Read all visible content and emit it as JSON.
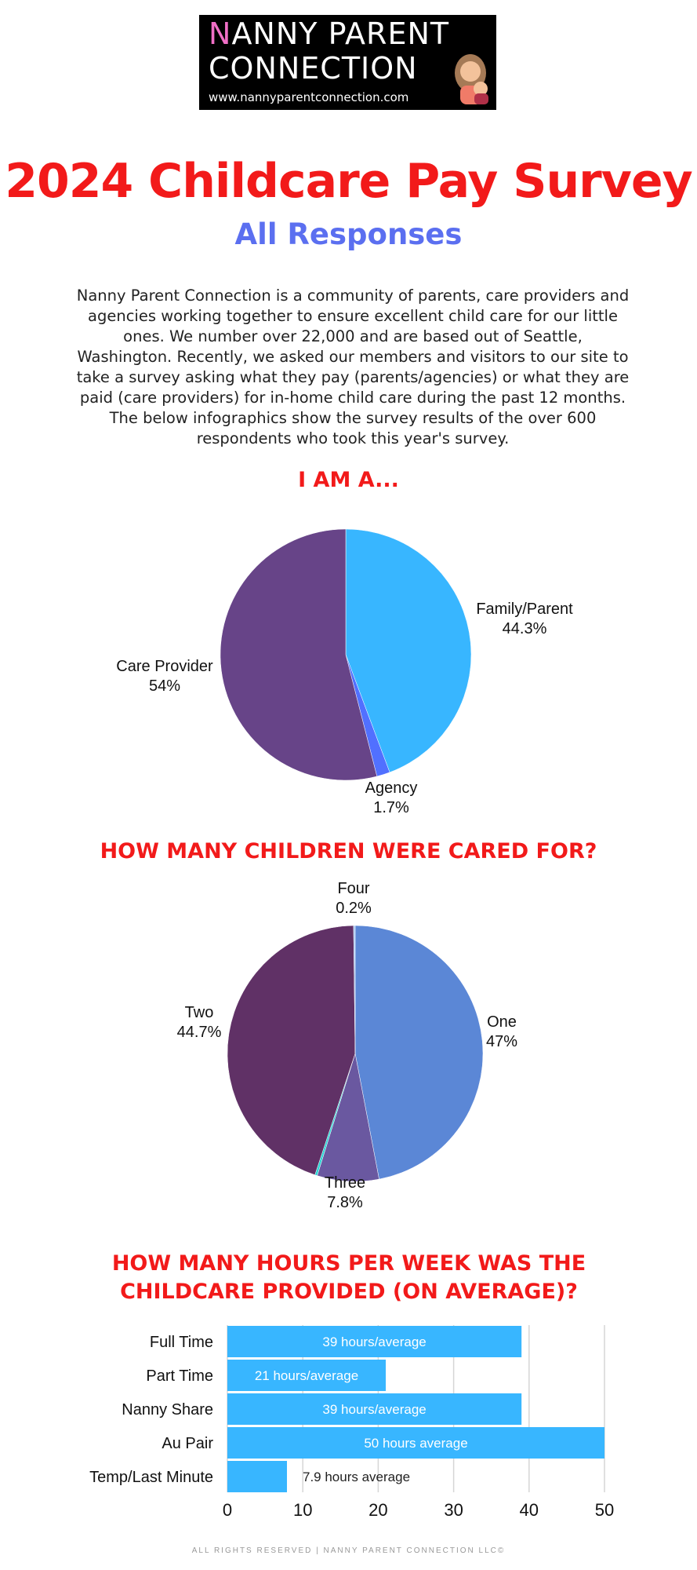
{
  "logo": {
    "line1_first": "N",
    "line1_rest": "ANNY PARENT",
    "line2": "CONNECTION",
    "url": "www.nannyparentconnection.com"
  },
  "title": "2024 Childcare Pay Survey",
  "subtitle": "All Responses",
  "intro": "Nanny Parent Connection is a community of parents, care providers and agencies working together to ensure excellent child care for our little ones. We number over 22,000 and are based out of Seattle, Washington. Recently, we asked our members and visitors to our site to take a survey asking what they pay (parents/agencies) or what they are paid (care providers) for in-home child care during the past 12 months. The below infographics show the survey results of the over 600 respondents who took this year's survey.",
  "footer": "ALL RIGHTS RESERVED | NANNY PARENT CONNECTION LLC©",
  "chart_data": [
    {
      "type": "pie",
      "title": "I AM A...",
      "slices": [
        {
          "label": "Family/Parent",
          "value": 44.3,
          "value_label": "44.3%",
          "color": "#38b6ff"
        },
        {
          "label": "Agency",
          "value": 1.7,
          "value_label": "1.7%",
          "color": "#5170ff"
        },
        {
          "label": "Care Provider",
          "value": 54,
          "value_label": "54%",
          "color": "#674488"
        }
      ]
    },
    {
      "type": "pie",
      "title": "HOW MANY CHILDREN WERE CARED FOR?",
      "slices": [
        {
          "label": "One",
          "value": 47,
          "value_label": "47%",
          "color": "#5b87d6"
        },
        {
          "label": "Three",
          "value": 7.8,
          "value_label": "7.8%",
          "color": "#6a58a0"
        },
        {
          "label": "",
          "value": 0.3,
          "value_label": "",
          "color": "#2ad4d4"
        },
        {
          "label": "Two",
          "value": 44.7,
          "value_label": "44.7%",
          "color": "#603166"
        },
        {
          "label": "Four",
          "value": 0.2,
          "value_label": "0.2%",
          "color": "#9fc4f0"
        }
      ]
    },
    {
      "type": "bar",
      "orientation": "horizontal",
      "title": "HOW MANY HOURS PER WEEK WAS THE CHILDCARE PROVIDED (ON AVERAGE)?",
      "categories": [
        "Full Time",
        "Part Time",
        "Nanny Share",
        "Au Pair",
        "Temp/Last Minute"
      ],
      "values": [
        39,
        21,
        39,
        50,
        7.9
      ],
      "data_labels": [
        "39 hours/average",
        "21 hours/average",
        "39 hours/average",
        "50 hours average",
        "7.9 hours average"
      ],
      "xlim": [
        0,
        50
      ],
      "xticks": [
        "0",
        "10",
        "20",
        "30",
        "40",
        "50"
      ],
      "grid": true,
      "color": "#38b6ff"
    }
  ]
}
